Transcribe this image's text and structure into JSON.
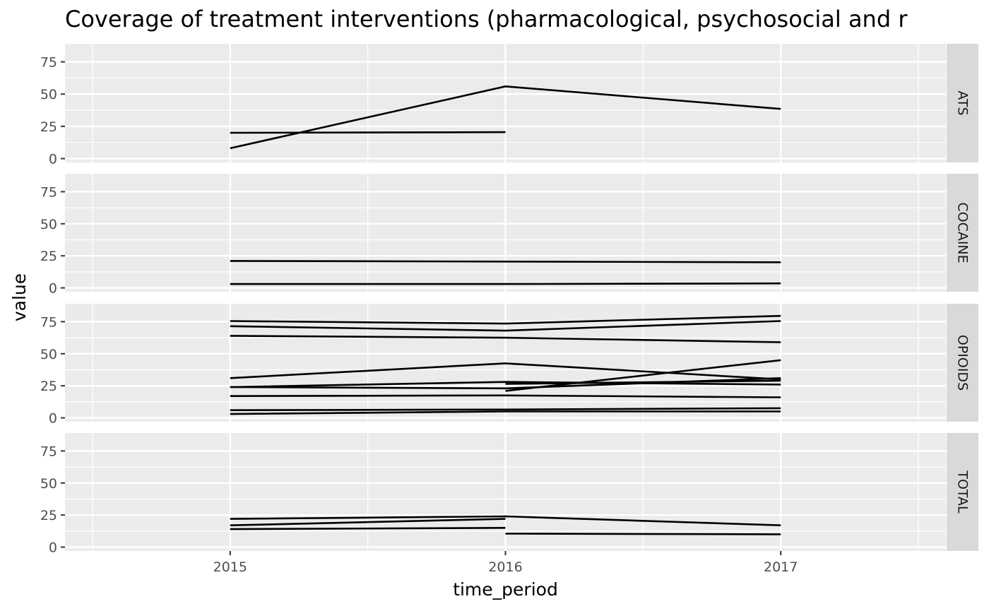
{
  "chart_data": {
    "type": "line",
    "title": "Coverage of treatment interventions (pharmacological, psychosocial and r",
    "xlabel": "time_period",
    "ylabel": "value",
    "x": [
      2015,
      2016,
      2017
    ],
    "xlim": [
      2014.4,
      2017.6
    ],
    "ylim": [
      -3,
      89
    ],
    "y_ticks": [
      0,
      25,
      50,
      75
    ],
    "grid": true,
    "line_color": "#000000",
    "panel_bg": "#ebebeb",
    "strip_bg": "#d9d9d9",
    "facets": [
      {
        "label": "ATS",
        "series": [
          {
            "points": [
              [
                2015,
                8
              ],
              [
                2016,
                56
              ],
              [
                2017,
                38.5
              ]
            ]
          },
          {
            "points": [
              [
                2015,
                20
              ],
              [
                2016,
                20.5
              ]
            ]
          }
        ]
      },
      {
        "label": "COCAINE",
        "series": [
          {
            "points": [
              [
                2015,
                21
              ],
              [
                2016,
                20.5
              ],
              [
                2017,
                20
              ]
            ]
          },
          {
            "points": [
              [
                2015,
                3
              ],
              [
                2016,
                3
              ],
              [
                2017,
                3.5
              ]
            ]
          }
        ]
      },
      {
        "label": "OPIOIDS",
        "series": [
          {
            "points": [
              [
                2015,
                75.5
              ],
              [
                2016,
                73.5
              ],
              [
                2017,
                79.5
              ]
            ]
          },
          {
            "points": [
              [
                2015,
                71.5
              ],
              [
                2016,
                68
              ],
              [
                2017,
                75.5
              ]
            ]
          },
          {
            "points": [
              [
                2015,
                64
              ],
              [
                2016,
                62.5
              ],
              [
                2017,
                59
              ]
            ]
          },
          {
            "points": [
              [
                2015,
                31
              ],
              [
                2016,
                42.5
              ],
              [
                2017,
                30
              ]
            ]
          },
          {
            "points": [
              [
                2015,
                24
              ],
              [
                2016,
                28
              ],
              [
                2017,
                26
              ]
            ]
          },
          {
            "points": [
              [
                2015,
                24
              ],
              [
                2016,
                23
              ],
              [
                2017,
                31
              ]
            ]
          },
          {
            "points": [
              [
                2016,
                21
              ],
              [
                2017,
                45
              ]
            ]
          },
          {
            "points": [
              [
                2016,
                26.5
              ],
              [
                2017,
                29
              ]
            ]
          },
          {
            "points": [
              [
                2015,
                17
              ],
              [
                2016,
                17.5
              ],
              [
                2017,
                16
              ]
            ]
          },
          {
            "points": [
              [
                2015,
                6
              ],
              [
                2016,
                6.5
              ],
              [
                2017,
                7.5
              ]
            ]
          },
          {
            "points": [
              [
                2015,
                3
              ],
              [
                2016,
                5
              ],
              [
                2017,
                5
              ]
            ]
          }
        ]
      },
      {
        "label": "TOTAL",
        "series": [
          {
            "points": [
              [
                2015,
                22
              ],
              [
                2016,
                24
              ],
              [
                2017,
                17
              ]
            ]
          },
          {
            "points": [
              [
                2015,
                17
              ],
              [
                2016,
                22
              ]
            ]
          },
          {
            "points": [
              [
                2015,
                14
              ],
              [
                2016,
                15
              ]
            ]
          },
          {
            "points": [
              [
                2016,
                10.5
              ],
              [
                2017,
                10
              ]
            ]
          }
        ]
      }
    ]
  }
}
